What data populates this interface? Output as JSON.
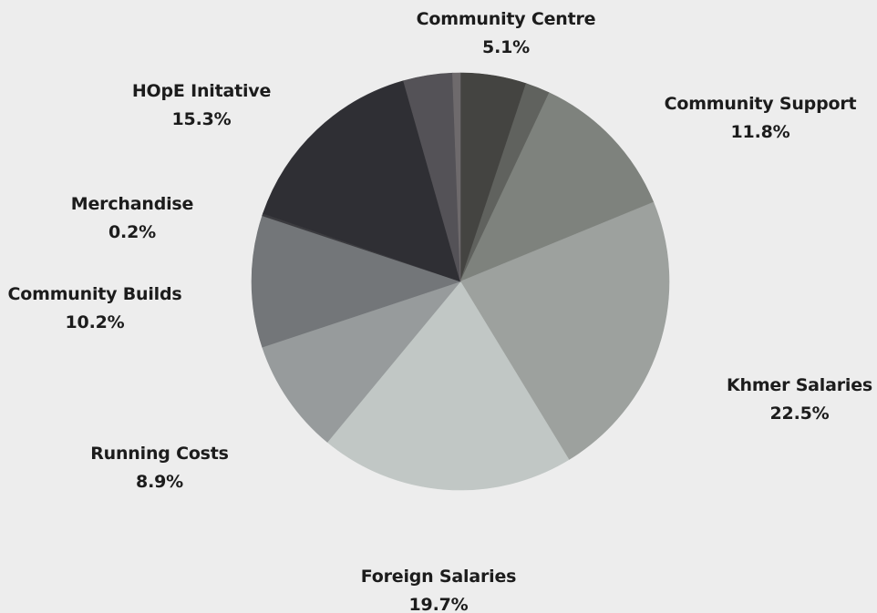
{
  "chart_data": {
    "type": "pie",
    "title": "",
    "slices": [
      {
        "label": "Community Centre",
        "value": 5.1,
        "value_label": "5.1%",
        "color": "#444441"
      },
      {
        "label": "",
        "value": 1.9,
        "value_label": "",
        "color": "#60625e"
      },
      {
        "label": "Community Support",
        "value": 11.8,
        "value_label": "11.8%",
        "color": "#7e827d"
      },
      {
        "label": "Khmer Salaries",
        "value": 22.5,
        "value_label": "22.5%",
        "color": "#9da19e"
      },
      {
        "label": "Foreign Salaries",
        "value": 19.7,
        "value_label": "19.7%",
        "color": "#c1c7c5"
      },
      {
        "label": "Running Costs",
        "value": 8.9,
        "value_label": "8.9%",
        "color": "#979b9c"
      },
      {
        "label": "Community Builds",
        "value": 10.2,
        "value_label": "10.2%",
        "color": "#737679"
      },
      {
        "label": "Merchandise",
        "value": 0.2,
        "value_label": "0.2%",
        "color": "#3b3b3f"
      },
      {
        "label": "HOpE Initative",
        "value": 15.3,
        "value_label": "15.3%",
        "color": "#2f2f34"
      },
      {
        "label": "",
        "value": 3.8,
        "value_label": "",
        "color": "#545257"
      },
      {
        "label": "",
        "value": 0.6,
        "value_label": "",
        "color": "#6e6a6c"
      }
    ]
  }
}
